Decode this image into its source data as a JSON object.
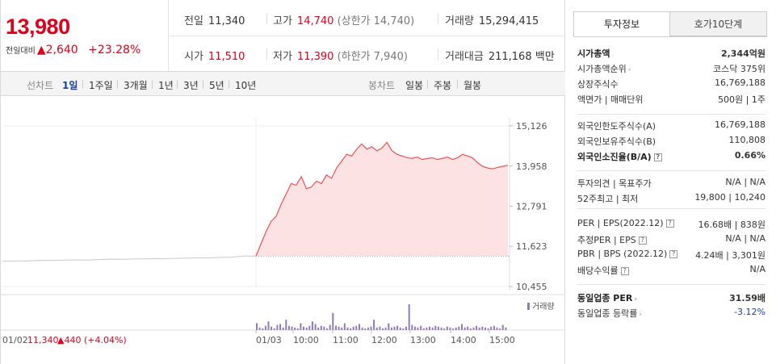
{
  "price": {
    "current": "13,980",
    "change_label": "전일대비",
    "change_arrow": "▲",
    "change": "2,640",
    "pct": "+23.28%"
  },
  "stats": {
    "prev_close_label": "전일",
    "prev_close": "11,340",
    "high_label": "고가",
    "high": "14,740",
    "upper_limit": "(상한가 14,740)",
    "volume_label": "거래량",
    "volume": "15,294,415",
    "open_label": "시가",
    "open": "11,510",
    "low_label": "저가",
    "low": "11,390",
    "lower_limit": "(하한가 7,940)",
    "amount_label": "거래대금",
    "amount": "211,168 백만"
  },
  "period_tabs": {
    "line_label": "선차트",
    "items": [
      "1일",
      "1주일",
      "3개월",
      "1년",
      "3년",
      "5년",
      "10년"
    ],
    "selected": "1일",
    "candle_label": "봉차트",
    "candle_items": [
      "일봉",
      "주봉",
      "월봉"
    ]
  },
  "chart_data": {
    "type": "line",
    "y_ticks": [
      "15,126",
      "13,958",
      "12,791",
      "11,623",
      "10,455"
    ],
    "ylim": [
      10455,
      15126
    ],
    "reference_price": 11340,
    "x_ticks": [
      "01/03",
      "10:00",
      "11:00",
      "12:00",
      "13:00",
      "14:00",
      "15:00"
    ],
    "volume_legend": "거래량",
    "footer_date": "01/02",
    "footer_price": "11,340",
    "footer_change": "▲440 (+4.04%)",
    "series": [
      {
        "values": [
          11340,
          11700,
          12050,
          12350,
          12500,
          12850,
          13150,
          13450,
          13400,
          13650,
          13300,
          13350,
          13520,
          13450,
          13700,
          13600,
          13900,
          14100,
          14300,
          14250,
          14450,
          14600,
          14450,
          14520,
          14400,
          14480,
          14650,
          14400,
          14300,
          14250,
          14200,
          14180,
          14220,
          14150,
          14180,
          14200,
          14150,
          14180,
          14220,
          14150,
          14200,
          14300,
          14250,
          14200,
          14050,
          13950,
          13900,
          13880,
          13920,
          13950,
          13980
        ]
      }
    ],
    "previous_day": {
      "values": [
        11190,
        11195,
        11200,
        11210,
        11215,
        11220,
        11230,
        11225,
        11240,
        11250,
        11245,
        11255,
        11260,
        11265,
        11270,
        11280,
        11285,
        11290,
        11300,
        11310,
        11340,
        11340
      ]
    },
    "volume_bars": [
      8,
      3,
      2,
      5,
      10,
      4,
      2,
      6,
      7,
      3,
      12,
      5,
      4,
      3,
      2,
      8,
      4,
      3,
      5,
      10,
      7,
      3,
      5,
      4,
      2,
      6,
      20,
      5,
      4,
      3,
      8,
      3,
      2,
      4,
      5,
      7,
      3,
      2,
      3,
      4,
      12,
      3,
      4,
      2,
      3,
      8,
      3,
      4,
      5,
      3,
      2,
      4,
      30,
      6,
      4,
      3,
      5,
      2,
      3,
      4,
      3,
      5,
      4,
      3,
      2,
      4,
      3,
      2,
      3,
      4,
      7,
      3,
      4,
      2,
      3,
      5,
      3,
      4,
      3,
      2,
      4,
      5,
      3,
      2,
      6,
      3
    ]
  },
  "tabs": {
    "invest_info": "투자정보",
    "order_book": "호가10단계"
  },
  "info_group1": [
    {
      "k": "시가총액",
      "v": "2,344억원",
      "kb": true,
      "vb": true
    },
    {
      "k": "시가총액순위",
      "v": "코스닥 375위",
      "arrow": true
    },
    {
      "k": "상장주식수",
      "v": "16,769,188"
    },
    {
      "k": "액면가 | 매매단위",
      "v": "500원 | 1주"
    }
  ],
  "info_group2": [
    {
      "k": "외국인한도주식수(A)",
      "v": "16,769,188"
    },
    {
      "k": "외국인보유주식수(B)",
      "v": "110,808"
    },
    {
      "k": "외국인소진율(B/A)",
      "v": "0.66%",
      "kb": true,
      "vb": true,
      "q": true
    }
  ],
  "info_group3": [
    {
      "k": "투자의견 | 목표주가",
      "v": "N/A | N/A"
    },
    {
      "k": "52주최고 | 최저",
      "v": "19,800 | 10,240"
    }
  ],
  "info_group4": [
    {
      "k": "PER | EPS(2022.12)",
      "v": "16.68배 | 838원",
      "q": true
    },
    {
      "k": "추정PER | EPS",
      "v": "N/A | N/A",
      "q": true
    },
    {
      "k": "PBR | BPS (2022.12)",
      "v": "4.24배 | 3,301원",
      "q": true
    },
    {
      "k": "배당수익률",
      "v": "N/A",
      "q": true
    }
  ],
  "info_group5": [
    {
      "k": "동일업종 PER",
      "v": "31.59배",
      "kb": true,
      "vb": true,
      "arrow": true
    },
    {
      "k": "동일업종 등락률",
      "v": "-3.12%",
      "arrow": true,
      "blue": true
    }
  ],
  "colors": {
    "up": "#e0001a",
    "line": "#f04545",
    "fill": "#fde2e4",
    "prev_line": "#c8c8c8",
    "volume": "#8e7bb8",
    "down": "#1b3fa5"
  }
}
